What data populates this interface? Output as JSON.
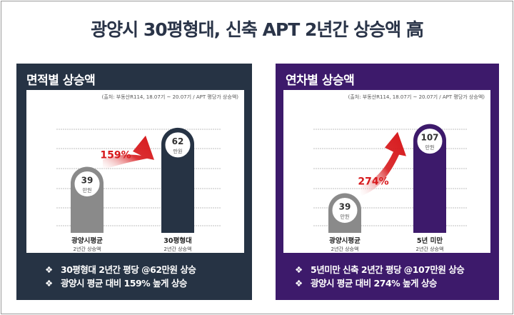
{
  "title": "광양시 30평형대, 신축 APT 2년간 상승액 高",
  "chart_data": [
    {
      "type": "bar",
      "title": "면적별 상승액",
      "source": "(출처: 부동산R114, 18.07기 ~ 20.07기 / APT 평당가 상승액)",
      "categories": [
        "광양시평균",
        "30평형대"
      ],
      "category_sublabels": [
        "2년간 상승액",
        "2년간 상승액"
      ],
      "values": [
        39,
        62
      ],
      "value_unit": "만원",
      "annotation": "159%",
      "bar_colors": [
        "#8a8a8a",
        "#263344"
      ],
      "ylim": [
        0,
        75
      ],
      "grid": true
    },
    {
      "type": "bar",
      "title": "연차별 상승액",
      "source": "(출처: 부동산R114, 18.07기 ~ 20.07기 / APT 평당가 상승액)",
      "categories": [
        "광양시평균",
        "5년 미만"
      ],
      "category_sublabels": [
        "2년간 상승액",
        "2년간 상승액"
      ],
      "values": [
        39,
        107
      ],
      "value_unit": "만원",
      "annotation": "274%",
      "bar_colors": [
        "#8a8a8a",
        "#3d1a6b"
      ],
      "ylim": [
        0,
        125
      ],
      "grid": true
    }
  ],
  "panels": [
    {
      "bullets": [
        "30평형대 2년간 평당 @62만원 상승",
        "광양시 평균 대비 159% 높게 상승"
      ]
    },
    {
      "bullets": [
        "5년미만 신축 2년간 평당 @107만원 상승",
        "광양시 평균 대비 274% 높게 상승"
      ]
    }
  ],
  "bullet_mark": "❖",
  "colors": {
    "arrow": "#d7191c",
    "annotation_text": "#d7191c",
    "grid": "#bfbfbf"
  }
}
